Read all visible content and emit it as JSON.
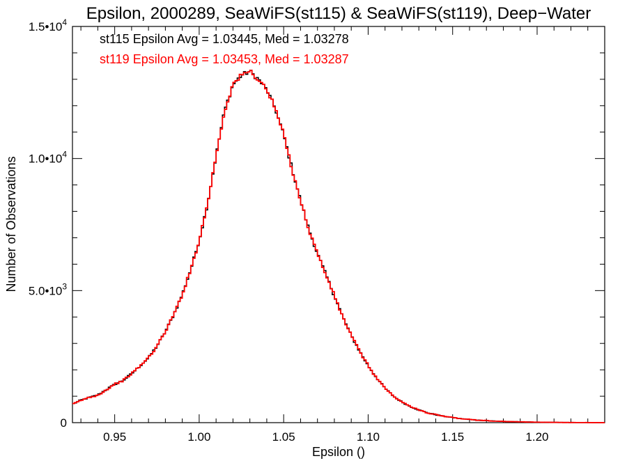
{
  "chart_data": {
    "type": "histogram",
    "title": "Epsilon, 2000289, SeaWiFS(st115) & SeaWiFS(st119), Deep−Water",
    "xlabel": "Epsilon ()",
    "ylabel": "Number of Observations",
    "xlim": [
      0.925,
      1.24
    ],
    "ylim": [
      0,
      15000
    ],
    "x_ticks": [
      {
        "value": 0.95,
        "label": "0.95"
      },
      {
        "value": 1.0,
        "label": "1.00"
      },
      {
        "value": 1.05,
        "label": "1.05"
      },
      {
        "value": 1.1,
        "label": "1.10"
      },
      {
        "value": 1.15,
        "label": "1.15"
      },
      {
        "value": 1.2,
        "label": "1.20"
      }
    ],
    "y_ticks": [
      {
        "value": 0,
        "base": "0",
        "exp": ""
      },
      {
        "value": 5000,
        "base": "5.0•10",
        "exp": "3"
      },
      {
        "value": 10000,
        "base": "1.0•10",
        "exp": "4"
      },
      {
        "value": 15000,
        "base": "1.5•10",
        "exp": "4"
      }
    ],
    "legend": [
      {
        "text": "st115 Epsilon Avg = 1.03445, Med = 1.03278",
        "color": "#000000"
      },
      {
        "text": "st119 Epsilon Avg = 1.03453, Med = 1.03287",
        "color": "#ff0000"
      }
    ],
    "series": [
      {
        "color": "#000000",
        "x": [
          0.925,
          0.93,
          0.935,
          0.94,
          0.945,
          0.95,
          0.955,
          0.96,
          0.965,
          0.97,
          0.975,
          0.98,
          0.985,
          0.99,
          0.995,
          1.0,
          1.005,
          1.01,
          1.015,
          1.02,
          1.025,
          1.03,
          1.035,
          1.04,
          1.045,
          1.05,
          1.055,
          1.06,
          1.065,
          1.07,
          1.075,
          1.08,
          1.085,
          1.09,
          1.095,
          1.1,
          1.105,
          1.11,
          1.115,
          1.12,
          1.125,
          1.13,
          1.135,
          1.14,
          1.145,
          1.15,
          1.155,
          1.16,
          1.165,
          1.17,
          1.175,
          1.18,
          1.185,
          1.19,
          1.195,
          1.2,
          1.205,
          1.21,
          1.215,
          1.22,
          1.225,
          1.23,
          1.235,
          1.24
        ],
        "y": [
          700,
          850,
          950,
          1050,
          1250,
          1450,
          1600,
          1850,
          2150,
          2450,
          2900,
          3450,
          4100,
          4850,
          5800,
          6900,
          8300,
          10100,
          11800,
          12800,
          13150,
          13300,
          13000,
          12600,
          11900,
          10900,
          9600,
          8400,
          7300,
          6400,
          5600,
          4800,
          4000,
          3300,
          2700,
          2150,
          1700,
          1300,
          1000,
          780,
          610,
          480,
          380,
          300,
          240,
          190,
          150,
          120,
          95,
          75,
          60,
          48,
          38,
          30,
          24,
          18,
          14,
          11,
          8,
          6,
          4,
          3,
          2,
          1
        ]
      },
      {
        "color": "#ff0000",
        "x": [
          0.925,
          0.93,
          0.935,
          0.94,
          0.945,
          0.95,
          0.955,
          0.96,
          0.965,
          0.97,
          0.975,
          0.98,
          0.985,
          0.99,
          0.995,
          1.0,
          1.005,
          1.01,
          1.015,
          1.02,
          1.025,
          1.03,
          1.035,
          1.04,
          1.045,
          1.05,
          1.055,
          1.06,
          1.065,
          1.07,
          1.075,
          1.08,
          1.085,
          1.09,
          1.095,
          1.1,
          1.105,
          1.11,
          1.115,
          1.12,
          1.125,
          1.13,
          1.135,
          1.14,
          1.145,
          1.15,
          1.155,
          1.16,
          1.165,
          1.17,
          1.175,
          1.18,
          1.185,
          1.19,
          1.195,
          1.2,
          1.205,
          1.21,
          1.215,
          1.22,
          1.225,
          1.23,
          1.235,
          1.24
        ],
        "y": [
          690,
          840,
          960,
          1040,
          1240,
          1460,
          1590,
          1860,
          2140,
          2460,
          2890,
          3460,
          4090,
          4860,
          5790,
          6910,
          8290,
          10110,
          11790,
          12820,
          13140,
          13320,
          12990,
          12610,
          11890,
          10910,
          9590,
          8410,
          7290,
          6410,
          5590,
          4810,
          3990,
          3310,
          2690,
          2160,
          1690,
          1310,
          990,
          790,
          600,
          490,
          370,
          310,
          230,
          200,
          140,
          130,
          90,
          80,
          55,
          50,
          35,
          32,
          22,
          20,
          13,
          12,
          7,
          6,
          4,
          3,
          2,
          1
        ]
      }
    ]
  }
}
